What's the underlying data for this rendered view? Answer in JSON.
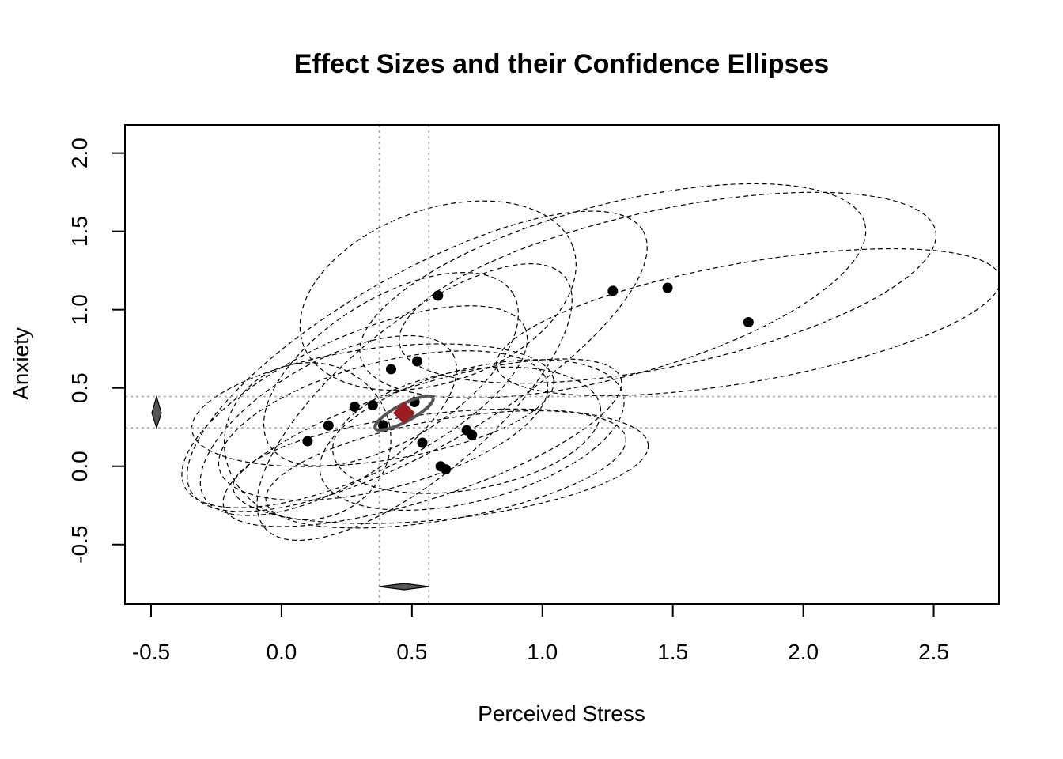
{
  "chart_data": {
    "type": "scatter",
    "title": "Effect Sizes and their Confidence Ellipses",
    "xlabel": "Perceived Stress",
    "ylabel": "Anxiety",
    "xlim": [
      -0.6,
      2.75
    ],
    "ylim": [
      -0.88,
      2.18
    ],
    "x_ticks": [
      -0.5,
      0.0,
      0.5,
      1.0,
      1.5,
      2.0,
      2.5
    ],
    "y_ticks": [
      -0.5,
      0.0,
      0.5,
      1.0,
      1.5,
      2.0
    ],
    "x_tick_labels": [
      "-0.5",
      "0.0",
      "0.5",
      "1.0",
      "1.5",
      "2.0",
      "2.5"
    ],
    "y_tick_labels": [
      "-0.5",
      "0.0",
      "0.5",
      "1.0",
      "1.5",
      "2.0"
    ],
    "grid": false,
    "points": [
      {
        "x": 0.1,
        "y": 0.16
      },
      {
        "x": 0.18,
        "y": 0.26
      },
      {
        "x": 0.28,
        "y": 0.38
      },
      {
        "x": 0.35,
        "y": 0.39
      },
      {
        "x": 0.39,
        "y": 0.26
      },
      {
        "x": 0.42,
        "y": 0.62
      },
      {
        "x": 0.51,
        "y": 0.41
      },
      {
        "x": 0.52,
        "y": 0.67
      },
      {
        "x": 0.54,
        "y": 0.15
      },
      {
        "x": 0.6,
        "y": 1.09
      },
      {
        "x": 0.61,
        "y": 0.0
      },
      {
        "x": 0.63,
        "y": -0.02
      },
      {
        "x": 0.71,
        "y": 0.23
      },
      {
        "x": 0.73,
        "y": 0.2
      },
      {
        "x": 1.27,
        "y": 1.12
      },
      {
        "x": 1.48,
        "y": 1.14
      },
      {
        "x": 1.79,
        "y": 0.92
      }
    ],
    "ellipses": [
      {
        "cx": 0.1,
        "cy": 0.16,
        "rx": 0.32,
        "ry": 0.5,
        "angle": 12
      },
      {
        "cx": 0.18,
        "cy": 0.26,
        "rx": 0.55,
        "ry": 0.4,
        "angle": 30
      },
      {
        "cx": 0.28,
        "cy": 0.38,
        "rx": 0.72,
        "ry": 0.44,
        "angle": 25
      },
      {
        "cx": 0.35,
        "cy": 0.39,
        "rx": 0.7,
        "ry": 0.36,
        "angle": 8
      },
      {
        "cx": 0.39,
        "cy": 0.26,
        "rx": 0.65,
        "ry": 0.4,
        "angle": 15
      },
      {
        "cx": 0.42,
        "cy": 0.62,
        "rx": 0.55,
        "ry": 0.45,
        "angle": 32
      },
      {
        "cx": 0.51,
        "cy": 0.41,
        "rx": 0.75,
        "ry": 0.48,
        "angle": 40
      },
      {
        "cx": 0.52,
        "cy": 0.67,
        "rx": 1.0,
        "ry": 0.55,
        "angle": 30
      },
      {
        "cx": 0.54,
        "cy": 0.15,
        "rx": 0.8,
        "ry": 0.36,
        "angle": 18
      },
      {
        "cx": 0.6,
        "cy": 1.09,
        "rx": 0.55,
        "ry": 0.55,
        "angle": 20
      },
      {
        "cx": 0.61,
        "cy": 0.0,
        "rx": 0.8,
        "ry": 0.34,
        "angle": 6
      },
      {
        "cx": 0.63,
        "cy": -0.02,
        "rx": 0.7,
        "ry": 0.32,
        "angle": 10
      },
      {
        "cx": 0.71,
        "cy": 0.23,
        "rx": 0.52,
        "ry": 0.38,
        "angle": 10
      },
      {
        "cx": 0.73,
        "cy": 0.2,
        "rx": 0.6,
        "ry": 0.42,
        "angle": 15
      },
      {
        "cx": 1.27,
        "cy": 1.12,
        "rx": 1.0,
        "ry": 0.55,
        "angle": 15
      },
      {
        "cx": 1.48,
        "cy": 1.14,
        "rx": 1.05,
        "ry": 0.5,
        "angle": 12
      },
      {
        "cx": 1.79,
        "cy": 0.92,
        "rx": 0.98,
        "ry": 0.38,
        "angle": 10
      }
    ],
    "pooled": {
      "x": 0.47,
      "y": 0.34,
      "ci_x": [
        0.375,
        0.565
      ],
      "ci_y": [
        0.245,
        0.445
      ],
      "ellipse_rx": 0.125,
      "ellipse_ry": 0.055,
      "angle": 28,
      "color": "#9b1c22"
    },
    "colors": {
      "points": "#000000",
      "ellipses": "#000000",
      "pooled_ellipse": "#555555",
      "diamonds": "#555555",
      "ci_lines": "#aaaaaa"
    }
  }
}
